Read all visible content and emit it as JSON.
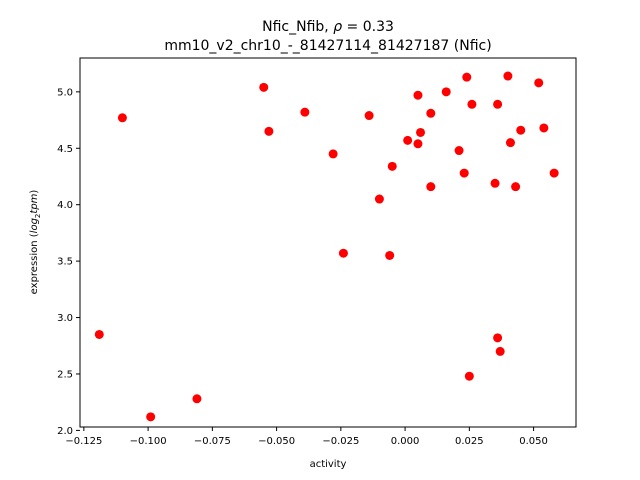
{
  "chart_data": {
    "type": "scatter",
    "title_line1_prefix": "Nfic_Nfib, ",
    "title_line1_symbol": "ρ",
    "title_line1_suffix": " = 0.33",
    "title_line2": "mm10_v2_chr10_-_81427114_81427187 (Nfic)",
    "xlabel": "activity",
    "ylabel_prefix": "expression (",
    "ylabel_math": "log",
    "ylabel_sub": "2",
    "ylabel_math2": "tpm",
    "ylabel_suffix": ")",
    "xlim": [
      -0.1265,
      0.0665
    ],
    "ylim": [
      2.03,
      5.3
    ],
    "xticks": [
      -0.125,
      -0.1,
      -0.075,
      -0.05,
      -0.025,
      0.0,
      0.025,
      0.05
    ],
    "xtick_labels": [
      "−0.125",
      "−0.100",
      "−0.075",
      "−0.050",
      "−0.025",
      "0.000",
      "0.025",
      "0.050"
    ],
    "yticks": [
      2.0,
      2.5,
      3.0,
      3.5,
      4.0,
      4.5,
      5.0
    ],
    "ytick_labels": [
      "2.0",
      "2.5",
      "3.0",
      "3.5",
      "4.0",
      "4.5",
      "5.0"
    ],
    "color": "#ff0000",
    "points": [
      {
        "x": -0.119,
        "y": 2.85
      },
      {
        "x": -0.11,
        "y": 4.77
      },
      {
        "x": -0.099,
        "y": 2.12
      },
      {
        "x": -0.081,
        "y": 2.28
      },
      {
        "x": -0.055,
        "y": 5.04
      },
      {
        "x": -0.053,
        "y": 4.65
      },
      {
        "x": -0.039,
        "y": 4.82
      },
      {
        "x": -0.028,
        "y": 4.45
      },
      {
        "x": -0.024,
        "y": 3.57
      },
      {
        "x": -0.014,
        "y": 4.79
      },
      {
        "x": -0.01,
        "y": 4.05
      },
      {
        "x": -0.006,
        "y": 3.55
      },
      {
        "x": -0.005,
        "y": 4.34
      },
      {
        "x": 0.001,
        "y": 4.57
      },
      {
        "x": 0.005,
        "y": 4.97
      },
      {
        "x": 0.005,
        "y": 4.54
      },
      {
        "x": 0.006,
        "y": 4.64
      },
      {
        "x": 0.01,
        "y": 4.81
      },
      {
        "x": 0.01,
        "y": 4.16
      },
      {
        "x": 0.016,
        "y": 5.0
      },
      {
        "x": 0.021,
        "y": 4.48
      },
      {
        "x": 0.023,
        "y": 4.28
      },
      {
        "x": 0.024,
        "y": 5.13
      },
      {
        "x": 0.025,
        "y": 2.48
      },
      {
        "x": 0.026,
        "y": 4.89
      },
      {
        "x": 0.035,
        "y": 4.19
      },
      {
        "x": 0.036,
        "y": 4.89
      },
      {
        "x": 0.036,
        "y": 2.82
      },
      {
        "x": 0.037,
        "y": 2.7
      },
      {
        "x": 0.04,
        "y": 5.14
      },
      {
        "x": 0.041,
        "y": 4.55
      },
      {
        "x": 0.043,
        "y": 4.16
      },
      {
        "x": 0.045,
        "y": 4.66
      },
      {
        "x": 0.052,
        "y": 5.08
      },
      {
        "x": 0.054,
        "y": 4.68
      },
      {
        "x": 0.058,
        "y": 4.28
      }
    ]
  }
}
